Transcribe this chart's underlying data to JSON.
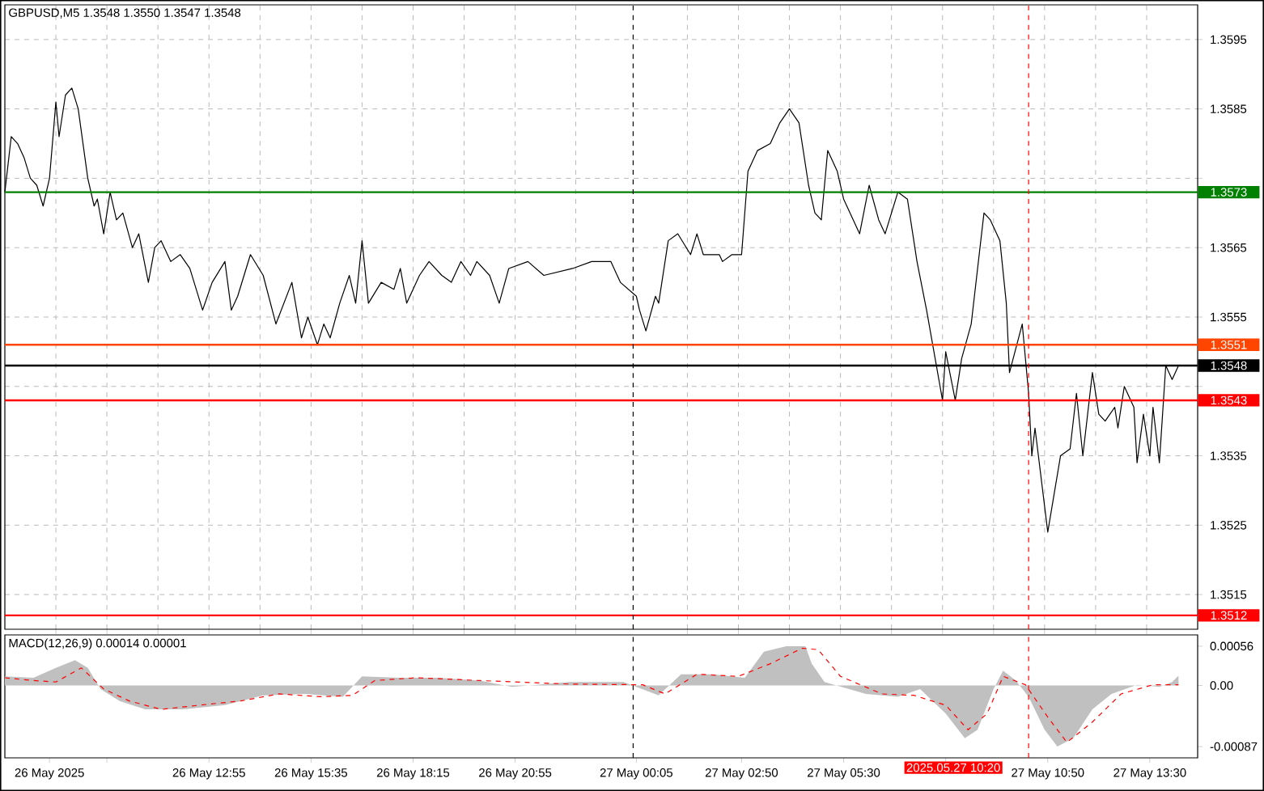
{
  "chart_data": [
    {
      "type": "line",
      "title": "GBPUSD,M5 1.3548 1.3550 1.3547 1.3548",
      "xlim": [
        "2025-05-26T07:35",
        "2025-05-27T14:45"
      ],
      "ylim": [
        1.351,
        1.36
      ],
      "tick_labels": "y",
      "grid": true,
      "xticks": [
        {
          "value": "2025-05-26T08:55",
          "label": null
        },
        {
          "value": "2025-05-26T10:15",
          "label": null
        },
        {
          "value": "2025-05-26T11:35",
          "label": null
        },
        {
          "value": "2025-05-26T12:55",
          "label": null
        },
        {
          "value": "2025-05-26T14:15",
          "label": null
        },
        {
          "value": "2025-05-26T15:35",
          "label": null
        },
        {
          "value": "2025-05-26T16:55",
          "label": null
        },
        {
          "value": "2025-05-26T18:15",
          "label": null
        },
        {
          "value": "2025-05-26T19:35",
          "label": null
        },
        {
          "value": "2025-05-26T20:55",
          "label": null
        },
        {
          "value": "2025-05-26T22:30",
          "label": null
        },
        {
          "value": "2025-05-27T01:25",
          "label": null
        },
        {
          "value": "2025-05-27T02:45",
          "label": null
        },
        {
          "value": "2025-05-27T04:05",
          "label": null
        },
        {
          "value": "2025-05-27T05:25",
          "label": null
        },
        {
          "value": "2025-05-27T06:45",
          "label": null
        },
        {
          "value": "2025-05-27T08:05",
          "label": null
        },
        {
          "value": "2025-05-27T09:25",
          "label": null
        },
        {
          "value": "2025-05-27T10:45",
          "label": null
        },
        {
          "value": "2025-05-27T12:05",
          "label": null
        },
        {
          "value": "2025-05-27T13:25",
          "label": null
        }
      ],
      "yticks": [
        1.3515,
        1.3525,
        1.3535,
        {
          "value": 1.3545,
          "label": null
        },
        1.3555,
        1.3565,
        {
          "value": 1.3575,
          "label": null
        },
        1.3585,
        1.3595
      ],
      "series": [
        {
          "color": "#000000",
          "x": [
            "2025-05-26T07:35",
            "2025-05-26T07:45",
            "2025-05-26T07:55",
            "2025-05-26T08:05",
            "2025-05-26T08:15",
            "2025-05-26T08:25",
            "2025-05-26T08:35",
            "2025-05-26T08:45",
            "2025-05-26T08:55",
            "2025-05-26T09:00",
            "2025-05-26T09:10",
            "2025-05-26T09:20",
            "2025-05-26T09:30",
            "2025-05-26T09:45",
            "2025-05-26T09:55",
            "2025-05-26T10:00",
            "2025-05-26T10:10",
            "2025-05-26T10:20",
            "2025-05-26T10:30",
            "2025-05-26T10:40",
            "2025-05-26T10:55",
            "2025-05-26T11:05",
            "2025-05-26T11:20",
            "2025-05-26T11:30",
            "2025-05-26T11:40",
            "2025-05-26T11:55",
            "2025-05-26T12:10",
            "2025-05-26T12:25",
            "2025-05-26T12:45",
            "2025-05-26T13:00",
            "2025-05-26T13:20",
            "2025-05-26T13:30",
            "2025-05-26T13:40",
            "2025-05-26T14:00",
            "2025-05-26T14:20",
            "2025-05-26T14:40",
            "2025-05-26T15:05",
            "2025-05-26T15:20",
            "2025-05-26T15:30",
            "2025-05-26T15:45",
            "2025-05-26T15:55",
            "2025-05-26T16:05",
            "2025-05-26T16:20",
            "2025-05-26T16:35",
            "2025-05-26T16:45",
            "2025-05-26T16:55",
            "2025-05-26T17:05",
            "2025-05-26T17:25",
            "2025-05-26T17:45",
            "2025-05-26T17:55",
            "2025-05-26T18:05",
            "2025-05-26T18:25",
            "2025-05-26T18:40",
            "2025-05-26T19:00",
            "2025-05-26T19:15",
            "2025-05-26T19:30",
            "2025-05-26T19:45",
            "2025-05-26T19:55",
            "2025-05-26T20:15",
            "2025-05-26T20:30",
            "2025-05-26T20:45",
            "2025-05-26T21:15",
            "2025-05-26T21:40",
            "2025-05-26T22:25",
            "2025-05-26T22:55",
            "2025-05-26T23:25",
            "2025-05-26T23:40",
            "2025-05-27T00:05",
            "2025-05-27T00:10",
            "2025-05-27T00:20",
            "2025-05-27T00:35",
            "2025-05-27T00:40",
            "2025-05-27T00:55",
            "2025-05-27T01:10",
            "2025-05-27T01:30",
            "2025-05-27T01:40",
            "2025-05-27T01:50",
            "2025-05-27T02:15",
            "2025-05-27T02:20",
            "2025-05-27T02:35",
            "2025-05-27T02:50",
            "2025-05-27T03:00",
            "2025-05-27T03:15",
            "2025-05-27T03:35",
            "2025-05-27T03:50",
            "2025-05-27T04:05",
            "2025-05-27T04:20",
            "2025-05-27T04:35",
            "2025-05-27T04:45",
            "2025-05-27T04:55",
            "2025-05-27T05:05",
            "2025-05-27T05:20",
            "2025-05-27T05:30",
            "2025-05-27T05:55",
            "2025-05-27T06:10",
            "2025-05-27T06:25",
            "2025-05-27T06:35",
            "2025-05-27T06:55",
            "2025-05-27T07:10",
            "2025-05-27T07:15",
            "2025-05-27T07:25",
            "2025-05-27T07:40",
            "2025-05-27T08:05",
            "2025-05-27T08:10",
            "2025-05-27T08:25",
            "2025-05-27T08:35",
            "2025-05-27T08:50",
            "2025-05-27T08:55",
            "2025-05-27T09:10",
            "2025-05-27T09:20",
            "2025-05-27T09:35",
            "2025-05-27T09:45",
            "2025-05-27T09:50",
            "2025-05-27T10:10",
            "2025-05-27T10:15",
            "2025-05-27T10:20",
            "2025-05-27T10:25",
            "2025-05-27T10:30",
            "2025-05-27T10:50",
            "2025-05-27T11:10",
            "2025-05-27T11:25",
            "2025-05-27T11:35",
            "2025-05-27T11:45",
            "2025-05-27T12:00",
            "2025-05-27T12:10",
            "2025-05-27T12:20",
            "2025-05-27T12:35",
            "2025-05-27T12:40",
            "2025-05-27T12:50",
            "2025-05-27T13:05",
            "2025-05-27T13:10",
            "2025-05-27T13:20",
            "2025-05-27T13:30",
            "2025-05-27T13:35",
            "2025-05-27T13:45",
            "2025-05-27T13:55",
            "2025-05-27T14:05",
            "2025-05-27T14:15"
          ],
          "values": [
            1.3573,
            1.3581,
            1.358,
            1.3578,
            1.3575,
            1.3574,
            1.3571,
            1.3575,
            1.3586,
            1.3581,
            1.3587,
            1.3588,
            1.3585,
            1.3575,
            1.3571,
            1.3572,
            1.3567,
            1.3573,
            1.3569,
            1.357,
            1.3565,
            1.3567,
            1.356,
            1.3565,
            1.3566,
            1.3563,
            1.3564,
            1.3562,
            1.3556,
            1.356,
            1.3563,
            1.3556,
            1.3558,
            1.3564,
            1.3561,
            1.3554,
            1.356,
            1.3552,
            1.3555,
            1.3551,
            1.3554,
            1.3552,
            1.3557,
            1.3561,
            1.3557,
            1.3566,
            1.3557,
            1.356,
            1.3559,
            1.3562,
            1.3557,
            1.3561,
            1.3563,
            1.3561,
            1.356,
            1.3563,
            1.3561,
            1.3563,
            1.3561,
            1.3557,
            1.3562,
            1.3563,
            1.3561,
            1.3562,
            1.3563,
            1.3563,
            1.356,
            1.3558,
            1.3556,
            1.3553,
            1.3558,
            1.3557,
            1.3566,
            1.3567,
            1.3564,
            1.3567,
            1.3564,
            1.3564,
            1.3563,
            1.3564,
            1.3564,
            1.3576,
            1.3579,
            1.358,
            1.3583,
            1.3585,
            1.3583,
            1.3574,
            1.357,
            1.3569,
            1.3579,
            1.3576,
            1.3572,
            1.3567,
            1.3574,
            1.3569,
            1.3567,
            1.3573,
            1.3572,
            1.3569,
            1.3563,
            1.3556,
            1.3543,
            1.355,
            1.3543,
            1.3549,
            1.3554,
            1.3558,
            1.357,
            1.3569,
            1.3566,
            1.3557,
            1.3547,
            1.3554,
            1.3549,
            1.3544,
            1.3535,
            1.3539,
            1.3524,
            1.3535,
            1.3536,
            1.3544,
            1.3535,
            1.3547,
            1.3541,
            1.354,
            1.3542,
            1.3539,
            1.3545,
            1.3542,
            1.3534,
            1.3541,
            1.3535,
            1.3542,
            1.3534,
            1.3548,
            1.3546,
            1.3548
          ]
        }
      ],
      "ref_lines": [
        {
          "axis": "y",
          "value": 1.3573,
          "label": "1.3573",
          "color": "#008000"
        },
        {
          "axis": "y",
          "value": 1.3551,
          "label": "1.3551",
          "color": "#ff4500"
        },
        {
          "axis": "y",
          "value": 1.3548,
          "label": "1.3548",
          "color": "#000000"
        },
        {
          "axis": "y",
          "value": 1.3543,
          "label": "1.3543",
          "color": "#ff0000"
        },
        {
          "axis": "y",
          "value": 1.3512,
          "label": "1.3512",
          "color": "#ff0000"
        },
        {
          "axis": "x",
          "value": "2025-05-27T00:00",
          "color": "#000000",
          "line_style": "dashed"
        },
        {
          "axis": "x",
          "value": "2025-05-27T10:20",
          "color": "#ff0000",
          "line_style": "dashed"
        }
      ]
    },
    {
      "type": "line",
      "title": "MACD(12,26,9) 0.00014 0.00001",
      "xlim": [
        "2025-05-26T07:35",
        "2025-05-27T14:45"
      ],
      "ylim": [
        -0.00103,
        0.00072
      ],
      "xticks": [
        {
          "value": "2025-05-26T08:45",
          "label": "26 May 2025"
        },
        {
          "value": "2025-05-26T10:15",
          "label": null
        },
        {
          "value": "2025-05-26T12:55",
          "label": "26 May 12:55"
        },
        {
          "value": "2025-05-26T15:35",
          "label": "26 May 15:35"
        },
        {
          "value": "2025-05-26T18:15",
          "label": "26 May 18:15"
        },
        {
          "value": "2025-05-26T20:55",
          "label": "26 May 20:55"
        },
        {
          "value": "2025-05-27T00:05",
          "label": "27 May 00:05"
        },
        {
          "value": "2025-05-27T02:50",
          "label": "27 May 02:50"
        },
        {
          "value": "2025-05-27T05:30",
          "label": "27 May 05:30"
        },
        {
          "value": "2025-05-27T08:10",
          "label": null
        },
        {
          "value": "2025-05-27T10:50",
          "label": "27 May 10:50"
        },
        {
          "value": "2025-05-27T13:30",
          "label": "27 May 13:30"
        }
      ],
      "yticks": [
        -0.00087,
        {
          "value": 0,
          "label": "0.00"
        },
        0.00056
      ],
      "series": [
        {
          "type": "area",
          "color": "#c0c0c0",
          "x": [
            "2025-05-26T07:35",
            "2025-05-26T08:20",
            "2025-05-26T08:55",
            "2025-05-26T09:25",
            "2025-05-26T09:45",
            "2025-05-26T10:05",
            "2025-05-26T10:35",
            "2025-05-26T11:15",
            "2025-05-26T12:15",
            "2025-05-26T13:20",
            "2025-05-26T14:20",
            "2025-05-26T15:25",
            "2025-05-26T16:25",
            "2025-05-26T16:55",
            "2025-05-26T17:55",
            "2025-05-26T18:55",
            "2025-05-26T20:00",
            "2025-05-26T20:50",
            "2025-05-26T22:20",
            "2025-05-26T23:45",
            "2025-05-27T00:40",
            "2025-05-27T01:15",
            "2025-05-27T02:05",
            "2025-05-27T02:55",
            "2025-05-27T03:25",
            "2025-05-27T04:00",
            "2025-05-27T04:30",
            "2025-05-27T04:40",
            "2025-05-27T05:00",
            "2025-05-27T06:05",
            "2025-05-27T06:55",
            "2025-05-27T07:30",
            "2025-05-27T08:10",
            "2025-05-27T08:40",
            "2025-05-27T09:00",
            "2025-05-27T09:25",
            "2025-05-27T09:40",
            "2025-05-27T10:00",
            "2025-05-27T10:20",
            "2025-05-27T10:45",
            "2025-05-27T11:05",
            "2025-05-27T11:30",
            "2025-05-27T12:00",
            "2025-05-27T12:30",
            "2025-05-27T13:10",
            "2025-05-27T13:45",
            "2025-05-27T14:05",
            "2025-05-27T14:15"
          ],
          "values": [
            0.00013,
            0.00011,
            0.00025,
            0.00036,
            0.00025,
            -5e-05,
            -0.00022,
            -0.00034,
            -0.00034,
            -0.00028,
            -0.00014,
            -0.00012,
            -0.00016,
            0.00013,
            0.00011,
            0.00011,
            7e-05,
            -2e-05,
            5e-05,
            5e-05,
            -0.00014,
            0.00016,
            0.00016,
            0.00011,
            0.00048,
            0.00056,
            0.00056,
            0.00031,
            5e-05,
            -0.00012,
            -0.00016,
            -5e-05,
            -0.0004,
            -0.00075,
            -0.00063,
            -5e-05,
            0.00021,
            7e-05,
            -0.00016,
            -0.00063,
            -0.00087,
            -0.00075,
            -0.00034,
            -0.00012,
            1e-05,
            -2e-05,
            5e-05,
            0.00014
          ]
        },
        {
          "type": "line",
          "color": "#ff0000",
          "line_style": "dashed",
          "x": [
            "2025-05-26T07:35",
            "2025-05-26T08:20",
            "2025-05-26T08:55",
            "2025-05-26T09:35",
            "2025-05-26T10:10",
            "2025-05-26T10:50",
            "2025-05-26T11:40",
            "2025-05-26T12:40",
            "2025-05-26T13:45",
            "2025-05-26T14:45",
            "2025-05-26T15:50",
            "2025-05-26T16:40",
            "2025-05-26T17:15",
            "2025-05-26T18:20",
            "2025-05-26T20:00",
            "2025-05-26T22:20",
            "2025-05-27T00:15",
            "2025-05-27T00:50",
            "2025-05-27T01:40",
            "2025-05-27T02:45",
            "2025-05-27T03:35",
            "2025-05-27T04:25",
            "2025-05-27T04:50",
            "2025-05-27T05:25",
            "2025-05-27T06:30",
            "2025-05-27T07:20",
            "2025-05-27T08:10",
            "2025-05-27T08:45",
            "2025-05-27T09:15",
            "2025-05-27T09:40",
            "2025-05-27T10:15",
            "2025-05-27T10:50",
            "2025-05-27T11:20",
            "2025-05-27T12:00",
            "2025-05-27T12:45",
            "2025-05-27T13:35",
            "2025-05-27T14:15"
          ],
          "values": [
            0.00011,
            7e-05,
            5e-05,
            0.00025,
            -5e-05,
            -0.00022,
            -0.00034,
            -0.00028,
            -0.00022,
            -0.00012,
            -0.00016,
            -0.00014,
            7e-05,
            0.00011,
            7e-05,
            2e-05,
            1e-05,
            -0.00012,
            0.00016,
            0.00013,
            0.00031,
            0.00053,
            0.00051,
            0.00013,
            -0.00012,
            -0.00014,
            -0.00028,
            -0.00063,
            -0.0004,
            0.00013,
            1e-05,
            -0.00045,
            -0.00081,
            -0.00052,
            -0.00012,
            1e-05,
            1e-05
          ]
        }
      ],
      "ref_lines": [
        {
          "axis": "x",
          "value": "2025-05-27T00:00",
          "color": "#000000",
          "line_style": "dashed"
        },
        {
          "axis": "x",
          "value": "2025-05-27T10:20",
          "label": "2025.05.27 10:20",
          "color": "#ff0000",
          "line_style": "dashed"
        }
      ]
    }
  ]
}
